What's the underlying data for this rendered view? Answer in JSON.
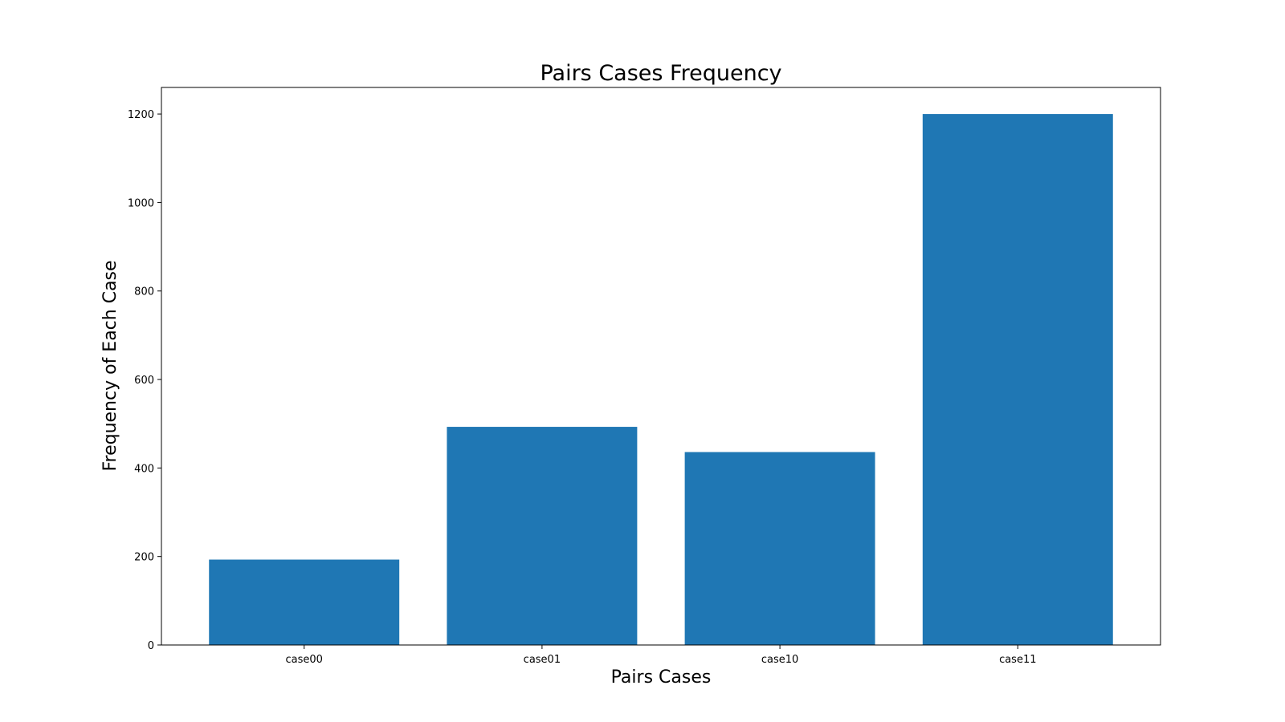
{
  "colors": {
    "bar": "#1f77b4",
    "axis": "#000000",
    "background": "#ffffff"
  },
  "chart_data": {
    "type": "bar",
    "title": "Pairs Cases Frequency",
    "xlabel": "Pairs Cases",
    "ylabel": "Frequency of Each Case",
    "categories": [
      "case00",
      "case01",
      "case10",
      "case11"
    ],
    "values": [
      193,
      493,
      436,
      1200
    ],
    "ylim": [
      0,
      1260
    ],
    "yticks": [
      0,
      200,
      400,
      600,
      800,
      1000,
      1200
    ],
    "grid": false,
    "legend": "none"
  }
}
